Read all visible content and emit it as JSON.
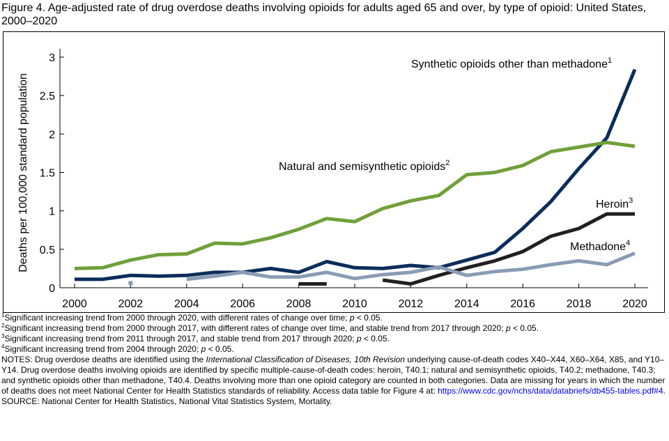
{
  "title": "Figure 4. Age-adjusted rate of drug overdose deaths involving opioids for adults aged 65 and over, by type of opioid: United States, 2000–2020",
  "chart_data": {
    "type": "line",
    "ylabel": "Deaths per 100,000  standard population",
    "xlabel": "",
    "xlim": [
      2000,
      2020
    ],
    "ylim": [
      0,
      3
    ],
    "x_ticks": [
      "2000",
      "2002",
      "2004",
      "2006",
      "2008",
      "2010",
      "2012",
      "2014",
      "2016",
      "2018",
      "2020"
    ],
    "y_ticks": [
      "0",
      "0.5",
      "1",
      "1.5",
      "2",
      "2.5",
      "3"
    ],
    "grid": false,
    "x": [
      2000,
      2001,
      2002,
      2003,
      2004,
      2005,
      2006,
      2007,
      2008,
      2009,
      2010,
      2011,
      2012,
      2013,
      2014,
      2015,
      2016,
      2017,
      2018,
      2019,
      2020
    ],
    "series": [
      {
        "name": "Synthetic opioids other than methadone",
        "sup": "1",
        "color": "#0b2d5b",
        "values": [
          0.11,
          0.11,
          0.16,
          0.15,
          0.16,
          0.2,
          0.2,
          0.25,
          0.2,
          0.34,
          0.26,
          0.25,
          0.29,
          0.26,
          0.36,
          0.46,
          0.77,
          1.12,
          1.55,
          1.95,
          2.84
        ]
      },
      {
        "name": "Natural and semisynthetic opioids",
        "sup": "2",
        "color": "#6fa03a",
        "values": [
          0.25,
          0.26,
          0.36,
          0.43,
          0.44,
          0.58,
          0.57,
          0.65,
          0.76,
          0.9,
          0.86,
          1.03,
          1.13,
          1.2,
          1.47,
          1.5,
          1.59,
          1.77,
          1.83,
          1.89,
          1.84
        ]
      },
      {
        "name": "Heroin",
        "sup": "3",
        "color": "#231f20",
        "values": [
          null,
          null,
          null,
          null,
          null,
          null,
          null,
          null,
          0.05,
          0.05,
          null,
          0.1,
          0.05,
          0.16,
          0.26,
          0.35,
          0.47,
          0.67,
          0.77,
          0.96,
          0.96
        ]
      },
      {
        "name": "Methadone",
        "sup": "4",
        "color": "#8a9cb4",
        "values": [
          null,
          null,
          0.06,
          null,
          0.11,
          0.15,
          0.2,
          0.14,
          0.14,
          0.2,
          0.12,
          0.17,
          0.2,
          0.27,
          0.16,
          0.21,
          0.24,
          0.3,
          0.35,
          0.3,
          0.45
        ]
      }
    ]
  },
  "footnotes": [
    {
      "sup": "1",
      "text": "Significant increasing trend from 2000 through 2020, with different rates of change over time; ",
      "p": "p",
      "tail": " < 0.05."
    },
    {
      "sup": "2",
      "text": "Significant increasing trend from 2000 through 2017, with different rates of change over time, and stable trend from 2017 through 2020; ",
      "p": "p",
      "tail": " < 0.05."
    },
    {
      "sup": "3",
      "text": "Significant increasing trend from 2011 through 2017, and stable trend from 2017 through 2020; ",
      "p": "p",
      "tail": " < 0.05."
    },
    {
      "sup": "4",
      "text": "Significant increasing trend from 2004 through 2020; ",
      "p": "p",
      "tail": " < 0.05."
    }
  ],
  "notes": {
    "prefix": "NOTES: Drug overdose deaths are identified using the ",
    "italic": "International Classification of Diseases, 10th Revision",
    "body": " underlying cause-of-death codes X40–X44, X60–X64, X85, and Y10–Y14. Drug overdose deaths involving opioids are identified by specific multiple-cause-of-death codes: heroin, T40.1; natural and semisynthetic opioids, T40.2; methadone, T40.3; and synthetic opioids other than methadone, T40.4. Deaths involving more than one opioid category are counted in both categories. Data are missing for years in which the number of deaths does not meet National Center for Health Statistics standards of reliability. Access data table for Figure 4 at: ",
    "link": "https://www.cdc.gov/nchs/data/databriefs/db455-tables.pdf#4",
    "end": "."
  },
  "source": "SOURCE: National Center for Health Statistics, National Vital Statistics System, Mortality."
}
